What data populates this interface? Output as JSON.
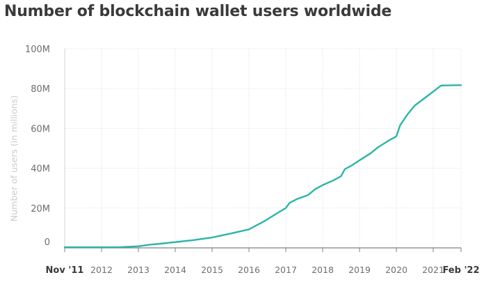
{
  "chart_data": {
    "type": "line",
    "title": "Number of blockchain wallet users worldwide",
    "xlabel": "",
    "ylabel": "Number of users (in millions)",
    "ylim": [
      0,
      100
    ],
    "yticks": [
      0,
      20,
      40,
      60,
      80,
      100
    ],
    "ytick_labels": [
      "0",
      "20M",
      "40M",
      "60M",
      "80M",
      "100M"
    ],
    "xticks": [
      {
        "label": "Nov '11",
        "value": 2011.83,
        "bold": true
      },
      {
        "label": "2012",
        "value": 2012
      },
      {
        "label": "2013",
        "value": 2013
      },
      {
        "label": "2014",
        "value": 2014
      },
      {
        "label": "2015",
        "value": 2015
      },
      {
        "label": "2016",
        "value": 2016
      },
      {
        "label": "2017",
        "value": 2017
      },
      {
        "label": "2018",
        "value": 2018
      },
      {
        "label": "2019",
        "value": 2019
      },
      {
        "label": "2020",
        "value": 2020
      },
      {
        "label": "2021",
        "value": 2021
      },
      {
        "label": "Feb '22",
        "value": 2022.08,
        "bold": true
      }
    ],
    "grid": true,
    "line_color": "#2bb5a8",
    "series": [
      {
        "x": [
          2011.83,
          2012,
          2012.5,
          2013,
          2013.3,
          2013.6,
          2014,
          2014.5,
          2015,
          2015.5,
          2016,
          2016.2,
          2016.4,
          2016.6,
          2016.8,
          2017,
          2017.1,
          2017.3,
          2017.6,
          2017.8,
          2018,
          2018.3,
          2018.5,
          2018.6,
          2018.8,
          2019,
          2019.3,
          2019.5,
          2019.8,
          2020,
          2020.1,
          2020.3,
          2020.5,
          2020.75,
          2021,
          2021.3,
          2021.6,
          2022.08
        ],
        "y": [
          0.3,
          0.3,
          0.4,
          0.8,
          1.6,
          2.1,
          2.9,
          3.9,
          5.2,
          7.2,
          9.3,
          11.3,
          13.2,
          15.5,
          17.8,
          20.0,
          22.6,
          24.5,
          26.5,
          29.5,
          31.5,
          34.0,
          36.0,
          39.5,
          41.5,
          44.0,
          47.5,
          50.5,
          54.0,
          56.0,
          61.5,
          67.0,
          71.5,
          75.0,
          78.5,
          81.5,
          81.6,
          81.7
        ]
      }
    ]
  }
}
